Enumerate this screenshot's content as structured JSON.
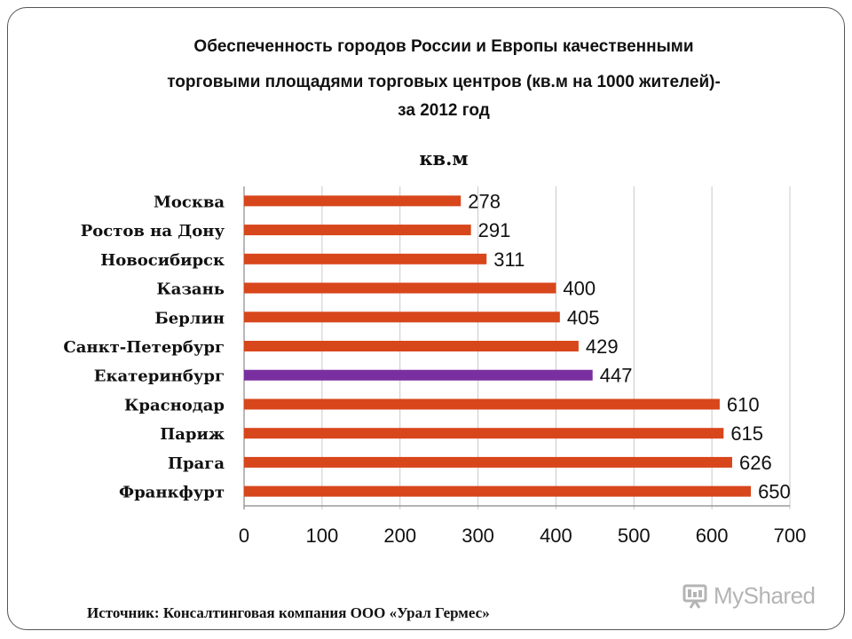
{
  "title_lines": [
    "Обеспеченность городов России и Европы качественными",
    "торговыми площадями торговых центров (кв.м на 1000 жителей)-",
    "за 2012 год"
  ],
  "source": "Источник: Консалтинговая компания ООО «Урал Гермес»",
  "watermark": "MyShared",
  "colors": {
    "bar": "#d8461c",
    "highlight": "#7a2fa0",
    "grid": "#c8c8c8",
    "axis": "#888888"
  },
  "chart_data": {
    "type": "bar",
    "orientation": "horizontal",
    "title": "",
    "unit_label": "кв.м",
    "categories": [
      "Москва",
      "Ростов на Дону",
      "Новосибирск",
      "Казань",
      "Берлин",
      "Санкт-Петербург",
      "Екатеринбург",
      "Краснодар",
      "Париж",
      "Прага",
      "Франкфурт"
    ],
    "values": [
      278,
      291,
      311,
      400,
      405,
      429,
      447,
      610,
      615,
      626,
      650
    ],
    "data_labels": [
      "278",
      "291",
      "311",
      "400",
      "405",
      "429",
      "447",
      "610",
      "615",
      "626",
      "650"
    ],
    "highlight_category": "Екатеринбург",
    "xlim": [
      0,
      700
    ],
    "xticks": [
      "0",
      "100",
      "200",
      "300",
      "400",
      "500",
      "600",
      "700"
    ],
    "grid": true,
    "legend": "none"
  }
}
